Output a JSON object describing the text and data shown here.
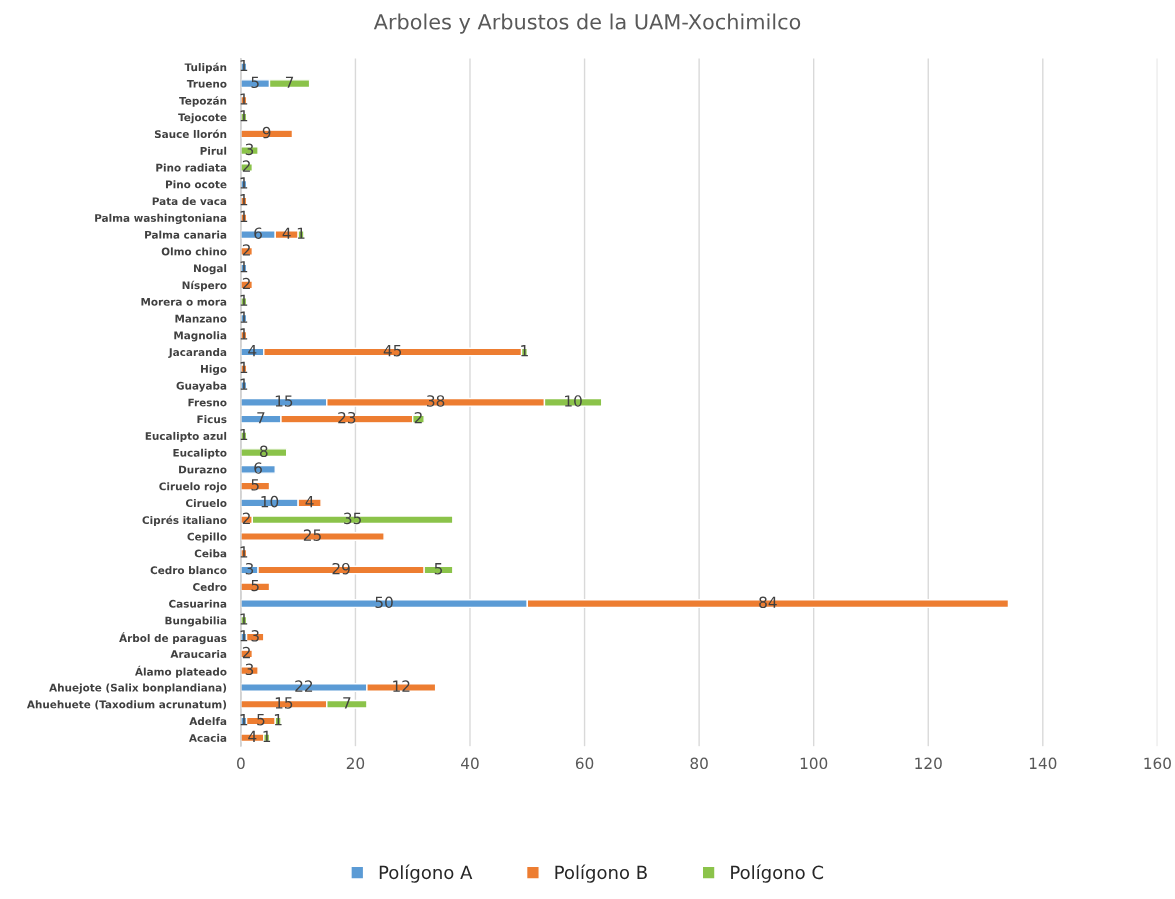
{
  "chart_data": {
    "type": "bar",
    "orientation": "horizontal",
    "stacked": true,
    "title": "Arboles y Arbustos de la UAM-Xochimilco",
    "categories": [
      "Tulipán",
      "Trueno",
      "Tepozán",
      "Tejocote",
      "Sauce llorón",
      "Pirul",
      "Pino radiata",
      "Pino ocote",
      "Pata de vaca",
      "Palma washingtoniana",
      "Palma canaria",
      "Olmo chino",
      "Nogal",
      "Níspero",
      "Morera o mora",
      "Manzano",
      "Magnolia",
      "Jacaranda",
      "Higo",
      "Guayaba",
      "Fresno",
      "Ficus",
      "Eucalipto azul",
      "Eucalipto",
      "Durazno",
      "Ciruelo rojo",
      "Ciruelo",
      "Ciprés italiano",
      "Cepillo",
      "Ceiba",
      "Cedro blanco",
      "Cedro",
      "Casuarina",
      "Bungabilia",
      "Árbol de paraguas",
      "Araucaria",
      "Álamo plateado",
      "Ahuejote (Salix bonplandiana)",
      "Ahuehuete (Taxodium acrunatum)",
      "Adelfa",
      "Acacia"
    ],
    "series": [
      {
        "name": "Polígono A",
        "color": "#5b9bd5",
        "values": [
          1,
          5,
          null,
          null,
          null,
          null,
          null,
          1,
          null,
          null,
          6,
          null,
          1,
          null,
          null,
          1,
          null,
          4,
          null,
          1,
          15,
          7,
          null,
          null,
          6,
          null,
          10,
          null,
          null,
          null,
          3,
          null,
          50,
          null,
          1,
          null,
          null,
          22,
          null,
          1,
          null
        ]
      },
      {
        "name": "Polígono B",
        "color": "#ed7d31",
        "values": [
          null,
          null,
          1,
          null,
          9,
          null,
          null,
          null,
          1,
          1,
          4,
          2,
          null,
          2,
          null,
          null,
          1,
          45,
          1,
          null,
          38,
          23,
          null,
          null,
          null,
          5,
          4,
          2,
          25,
          1,
          29,
          5,
          84,
          null,
          3,
          2,
          3,
          12,
          15,
          5,
          4
        ]
      },
      {
        "name": "Polígono C",
        "color": "#8bc34a",
        "values": [
          null,
          7,
          null,
          1,
          null,
          3,
          2,
          null,
          null,
          null,
          1,
          null,
          null,
          null,
          1,
          null,
          null,
          1,
          null,
          null,
          10,
          2,
          1,
          8,
          null,
          null,
          null,
          35,
          null,
          null,
          5,
          null,
          null,
          1,
          null,
          null,
          null,
          null,
          7,
          1,
          1
        ]
      }
    ],
    "xlim": [
      0,
      160
    ],
    "xticks": [
      0,
      20,
      40,
      60,
      80,
      100,
      120,
      140,
      160
    ],
    "grid": "x",
    "legend": "bottom",
    "data_labels": true
  }
}
